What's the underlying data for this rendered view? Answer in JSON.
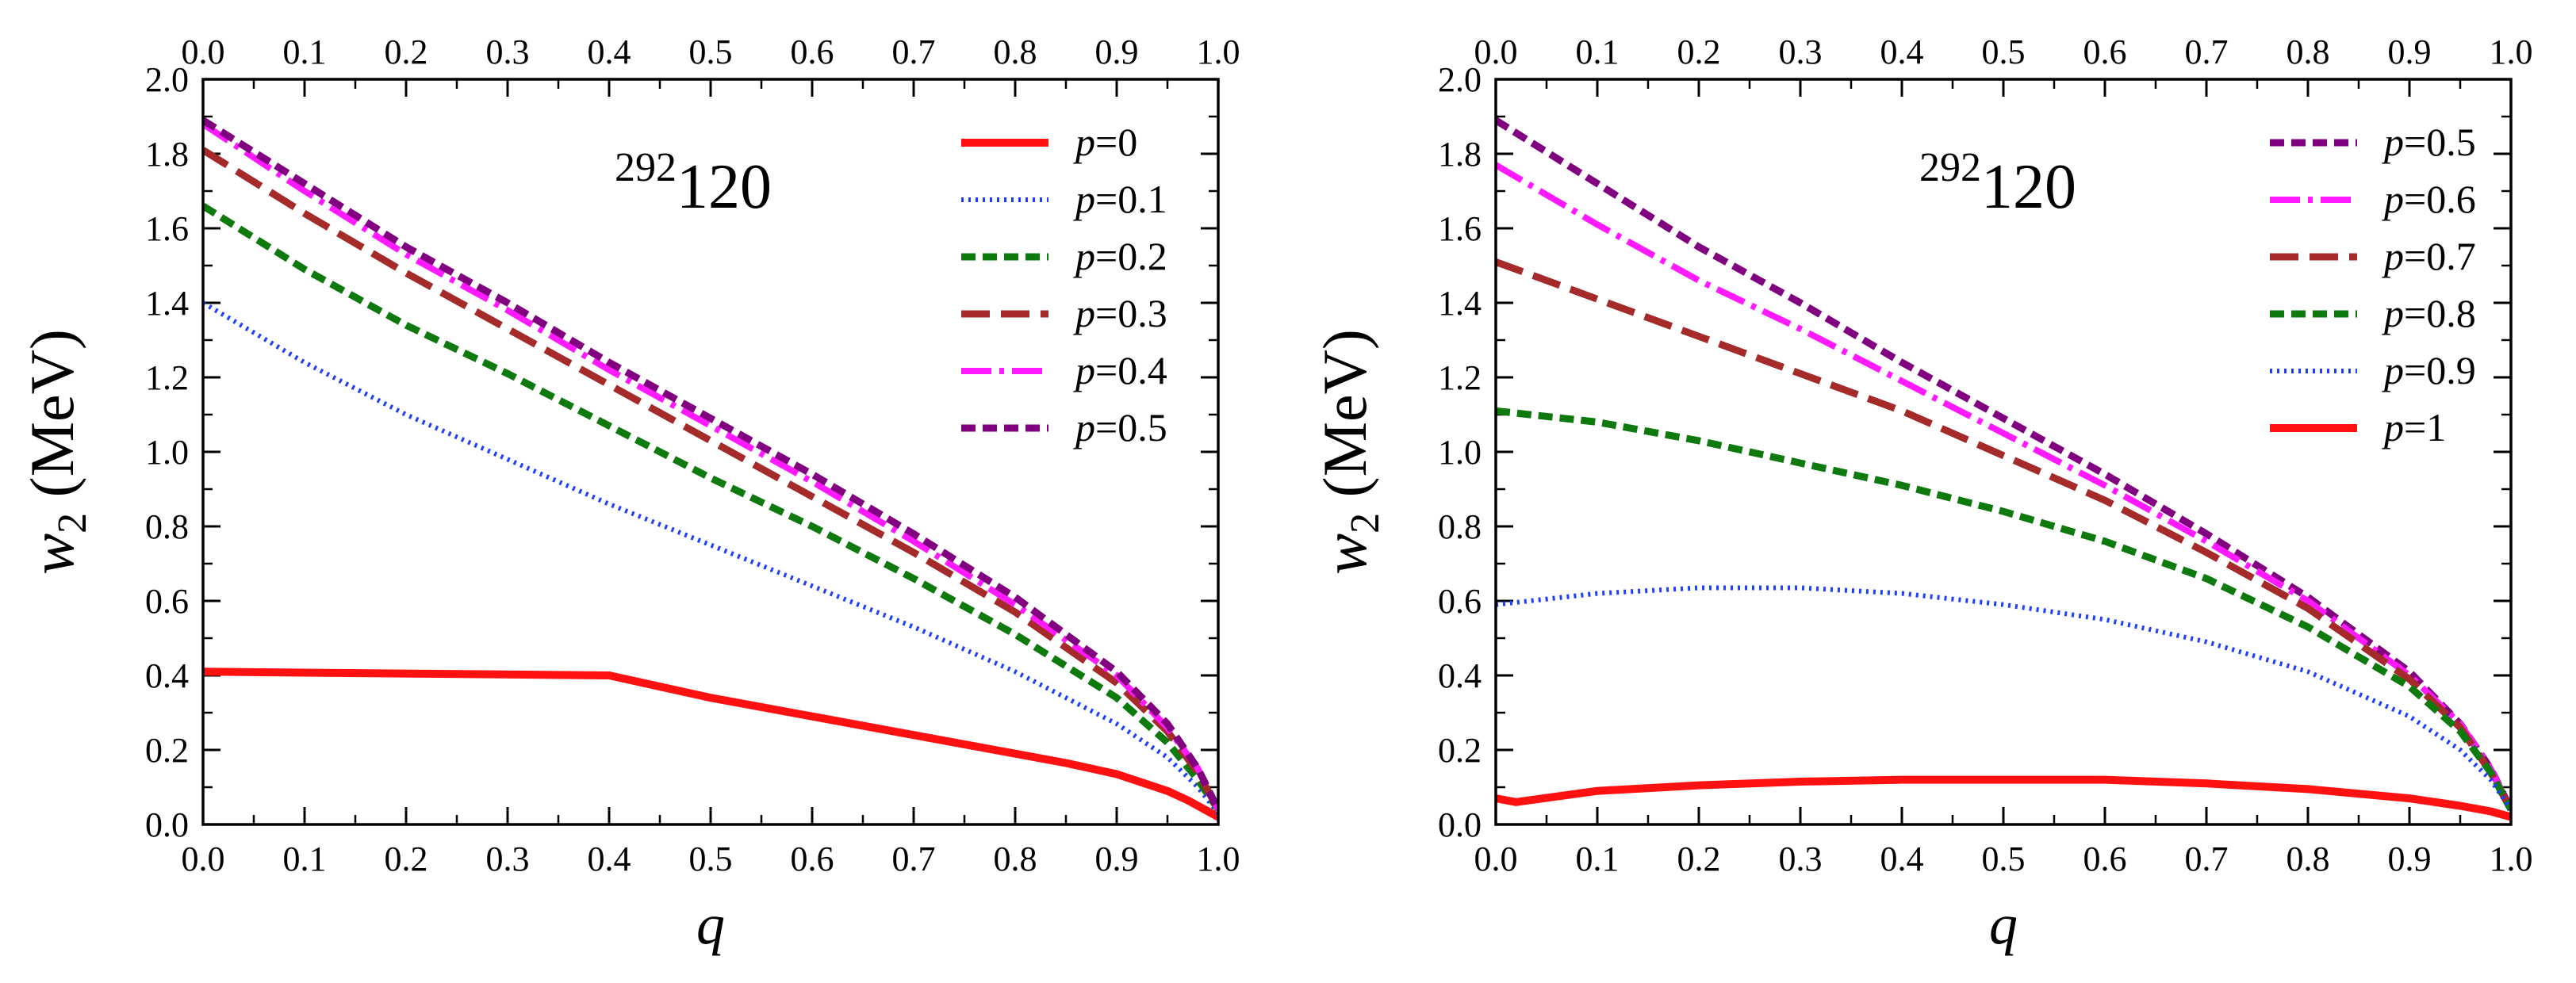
{
  "chart_data": [
    {
      "type": "line",
      "nucleus_mass": "292",
      "nucleus_element": "120",
      "xlabel": "q",
      "ylabel_main": "w",
      "ylabel_sub": "2",
      "ylabel_unit": " (MeV)",
      "xlim": [
        0,
        1
      ],
      "ylim": [
        0,
        2
      ],
      "x_ticks": [
        "0.0",
        "0.1",
        "0.2",
        "0.3",
        "0.4",
        "0.5",
        "0.6",
        "0.7",
        "0.8",
        "0.9",
        "1.0"
      ],
      "y_ticks": [
        "0.0",
        "0.2",
        "0.4",
        "0.6",
        "0.8",
        "1.0",
        "1.2",
        "1.4",
        "1.6",
        "1.8",
        "2.0"
      ],
      "grid": false,
      "legend_position": "top-right",
      "series": [
        {
          "name": "p=0",
          "legend_var": "p",
          "legend_value": "=0",
          "color": "#ff1111",
          "style": "solid",
          "x": [
            0,
            0.4,
            0.5,
            0.6,
            0.7,
            0.8,
            0.85,
            0.9,
            0.95,
            0.97,
            0.99,
            1.0
          ],
          "y": [
            0.41,
            0.4,
            0.34,
            0.29,
            0.24,
            0.19,
            0.165,
            0.135,
            0.09,
            0.065,
            0.035,
            0.02
          ]
        },
        {
          "name": "p=0.1",
          "legend_var": "p",
          "legend_value": "=0.1",
          "color": "#1f3fff",
          "style": "dotted",
          "x": [
            0,
            0.1,
            0.2,
            0.3,
            0.4,
            0.5,
            0.6,
            0.7,
            0.8,
            0.9,
            0.95,
            0.98,
            1.0
          ],
          "y": [
            1.4,
            1.24,
            1.1,
            0.98,
            0.86,
            0.75,
            0.64,
            0.53,
            0.41,
            0.27,
            0.18,
            0.1,
            0.03
          ]
        },
        {
          "name": "p=0.2",
          "legend_var": "p",
          "legend_value": "=0.2",
          "color": "#0e7a0e",
          "style": "dash-short",
          "x": [
            0,
            0.1,
            0.2,
            0.3,
            0.4,
            0.5,
            0.6,
            0.7,
            0.8,
            0.9,
            0.95,
            0.98,
            1.0
          ],
          "y": [
            1.66,
            1.49,
            1.34,
            1.21,
            1.07,
            0.93,
            0.8,
            0.66,
            0.51,
            0.34,
            0.22,
            0.12,
            0.04
          ]
        },
        {
          "name": "p=0.3",
          "legend_var": "p",
          "legend_value": "=0.3",
          "color": "#a52a2a",
          "style": "dash-long",
          "x": [
            0,
            0.1,
            0.2,
            0.3,
            0.4,
            0.5,
            0.6,
            0.7,
            0.8,
            0.9,
            0.95,
            0.98,
            1.0
          ],
          "y": [
            1.81,
            1.64,
            1.48,
            1.33,
            1.18,
            1.03,
            0.88,
            0.73,
            0.57,
            0.38,
            0.25,
            0.14,
            0.04
          ]
        },
        {
          "name": "p=0.4",
          "legend_var": "p",
          "legend_value": "=0.4",
          "color": "#ff1aff",
          "style": "dashdot",
          "x": [
            0,
            0.1,
            0.2,
            0.3,
            0.4,
            0.5,
            0.6,
            0.7,
            0.8,
            0.9,
            0.95,
            0.98,
            1.0
          ],
          "y": [
            1.88,
            1.7,
            1.53,
            1.38,
            1.22,
            1.07,
            0.92,
            0.76,
            0.59,
            0.4,
            0.26,
            0.15,
            0.04
          ]
        },
        {
          "name": "p=0.5",
          "legend_var": "p",
          "legend_value": "=0.5",
          "color": "#800080",
          "style": "dash-short",
          "x": [
            0,
            0.1,
            0.2,
            0.3,
            0.4,
            0.5,
            0.6,
            0.7,
            0.8,
            0.9,
            0.95,
            0.98,
            1.0
          ],
          "y": [
            1.89,
            1.72,
            1.55,
            1.4,
            1.24,
            1.09,
            0.94,
            0.78,
            0.61,
            0.41,
            0.27,
            0.15,
            0.04
          ]
        }
      ]
    },
    {
      "type": "line",
      "nucleus_mass": "292",
      "nucleus_element": "120",
      "xlabel": "q",
      "ylabel_main": "w",
      "ylabel_sub": "2",
      "ylabel_unit": " (MeV)",
      "xlim": [
        0,
        1
      ],
      "ylim": [
        0,
        2
      ],
      "x_ticks": [
        "0.0",
        "0.1",
        "0.2",
        "0.3",
        "0.4",
        "0.5",
        "0.6",
        "0.7",
        "0.8",
        "0.9",
        "1.0"
      ],
      "y_ticks": [
        "0.0",
        "0.2",
        "0.4",
        "0.6",
        "0.8",
        "1.0",
        "1.2",
        "1.4",
        "1.6",
        "1.8",
        "2.0"
      ],
      "grid": false,
      "legend_position": "top-right",
      "series": [
        {
          "name": "p=0.5",
          "legend_var": "p",
          "legend_value": "=0.5",
          "color": "#800080",
          "style": "dash-short",
          "x": [
            0,
            0.1,
            0.2,
            0.3,
            0.4,
            0.5,
            0.6,
            0.7,
            0.8,
            0.9,
            0.95,
            0.98,
            1.0
          ],
          "y": [
            1.89,
            1.72,
            1.55,
            1.4,
            1.24,
            1.09,
            0.94,
            0.78,
            0.61,
            0.41,
            0.27,
            0.15,
            0.04
          ]
        },
        {
          "name": "p=0.6",
          "legend_var": "p",
          "legend_value": "=0.6",
          "color": "#ff1aff",
          "style": "dashdot",
          "x": [
            0,
            0.1,
            0.2,
            0.3,
            0.4,
            0.5,
            0.6,
            0.7,
            0.8,
            0.9,
            0.95,
            0.98,
            1.0
          ],
          "y": [
            1.77,
            1.61,
            1.46,
            1.33,
            1.19,
            1.05,
            0.91,
            0.76,
            0.6,
            0.4,
            0.27,
            0.15,
            0.04
          ]
        },
        {
          "name": "p=0.7",
          "legend_var": "p",
          "legend_value": "=0.7",
          "color": "#a52a2a",
          "style": "dash-long",
          "x": [
            0,
            0.1,
            0.2,
            0.3,
            0.4,
            0.5,
            0.6,
            0.7,
            0.8,
            0.9,
            0.95,
            0.98,
            1.0
          ],
          "y": [
            1.51,
            1.41,
            1.31,
            1.21,
            1.11,
            0.99,
            0.87,
            0.73,
            0.58,
            0.39,
            0.26,
            0.14,
            0.04
          ]
        },
        {
          "name": "p=0.8",
          "legend_var": "p",
          "legend_value": "=0.8",
          "color": "#0e7a0e",
          "style": "dash-short",
          "x": [
            0,
            0.1,
            0.2,
            0.3,
            0.4,
            0.5,
            0.6,
            0.7,
            0.8,
            0.9,
            0.95,
            0.98,
            1.0
          ],
          "y": [
            1.11,
            1.08,
            1.03,
            0.97,
            0.91,
            0.84,
            0.76,
            0.66,
            0.53,
            0.37,
            0.25,
            0.14,
            0.04
          ]
        },
        {
          "name": "p=0.9",
          "legend_var": "p",
          "legend_value": "=0.9",
          "color": "#1f3fff",
          "style": "dotted",
          "x": [
            0,
            0.1,
            0.2,
            0.3,
            0.4,
            0.5,
            0.6,
            0.7,
            0.8,
            0.9,
            0.95,
            0.98,
            1.0
          ],
          "y": [
            0.59,
            0.62,
            0.635,
            0.635,
            0.62,
            0.59,
            0.55,
            0.49,
            0.41,
            0.29,
            0.2,
            0.12,
            0.04
          ]
        },
        {
          "name": "p=1",
          "legend_var": "p",
          "legend_value": "=1",
          "color": "#ff1111",
          "style": "solid",
          "x": [
            0,
            0.02,
            0.1,
            0.2,
            0.3,
            0.4,
            0.5,
            0.6,
            0.7,
            0.8,
            0.9,
            0.95,
            0.98,
            1.0
          ],
          "y": [
            0.07,
            0.06,
            0.09,
            0.105,
            0.115,
            0.12,
            0.12,
            0.12,
            0.11,
            0.095,
            0.07,
            0.05,
            0.035,
            0.02
          ]
        }
      ]
    }
  ]
}
